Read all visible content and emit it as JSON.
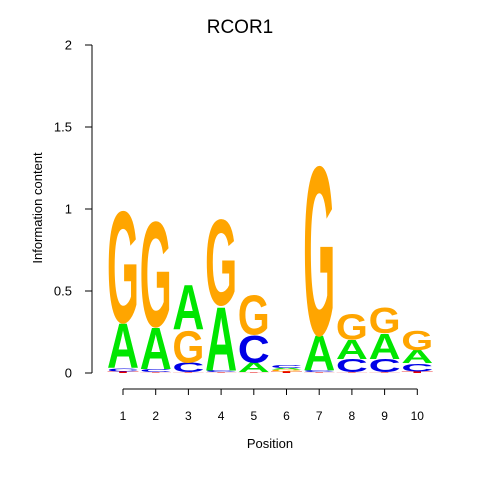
{
  "chart_data": {
    "type": "sequence-logo",
    "title": "RCOR1",
    "xlabel": "Position",
    "ylabel": "Information content",
    "ylim": [
      0,
      2
    ],
    "y_ticks": [
      {
        "value": 0,
        "label": "0"
      },
      {
        "value": 0.5,
        "label": "0.5"
      },
      {
        "value": 1,
        "label": "1"
      },
      {
        "value": 1.5,
        "label": "1.5"
      },
      {
        "value": 2,
        "label": "2"
      }
    ],
    "positions": [
      "1",
      "2",
      "3",
      "4",
      "5",
      "6",
      "7",
      "8",
      "9",
      "10"
    ],
    "colors": {
      "A": "#00e600",
      "C": "#0000e6",
      "G": "#ffa500",
      "T": "#e60000"
    },
    "stacks": [
      [
        {
          "base": "T",
          "height": 0.01
        },
        {
          "base": "C",
          "height": 0.02
        },
        {
          "base": "A",
          "height": 0.28
        },
        {
          "base": "G",
          "height": 0.7
        }
      ],
      [
        {
          "base": "T",
          "height": 0.005
        },
        {
          "base": "C",
          "height": 0.02
        },
        {
          "base": "A",
          "height": 0.26
        },
        {
          "base": "G",
          "height": 0.66
        }
      ],
      [
        {
          "base": "T",
          "height": 0.005
        },
        {
          "base": "C",
          "height": 0.06
        },
        {
          "base": "G",
          "height": 0.2
        },
        {
          "base": "A",
          "height": 0.28
        }
      ],
      [
        {
          "base": "T",
          "height": 0.005
        },
        {
          "base": "C",
          "height": 0.01
        },
        {
          "base": "A",
          "height": 0.4
        },
        {
          "base": "G",
          "height": 0.54
        }
      ],
      [
        {
          "base": "T",
          "height": 0.005
        },
        {
          "base": "A",
          "height": 0.06
        },
        {
          "base": "C",
          "height": 0.17
        },
        {
          "base": "G",
          "height": 0.25
        }
      ],
      [
        {
          "base": "T",
          "height": 0.01
        },
        {
          "base": "G",
          "height": 0.01
        },
        {
          "base": "A",
          "height": 0.01
        },
        {
          "base": "C",
          "height": 0.02
        }
      ],
      [
        {
          "base": "T",
          "height": 0.005
        },
        {
          "base": "C",
          "height": 0.01
        },
        {
          "base": "A",
          "height": 0.22
        },
        {
          "base": "G",
          "height": 1.06
        }
      ],
      [
        {
          "base": "T",
          "height": 0.005
        },
        {
          "base": "C",
          "height": 0.08
        },
        {
          "base": "A",
          "height": 0.12
        },
        {
          "base": "G",
          "height": 0.16
        }
      ],
      [
        {
          "base": "T",
          "height": 0.005
        },
        {
          "base": "C",
          "height": 0.08
        },
        {
          "base": "A",
          "height": 0.16
        },
        {
          "base": "G",
          "height": 0.16
        }
      ],
      [
        {
          "base": "T",
          "height": 0.01
        },
        {
          "base": "C",
          "height": 0.05
        },
        {
          "base": "A",
          "height": 0.08
        },
        {
          "base": "G",
          "height": 0.12
        }
      ]
    ]
  }
}
